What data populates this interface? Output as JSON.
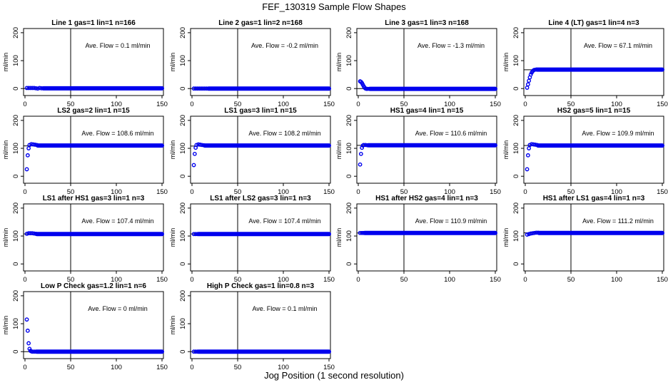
{
  "title": "FEF_130319  Sample Flow Shapes",
  "xlabel": "Jog Position (1 second resolution)",
  "colors": {
    "points": "#0000ee",
    "axes": "#000000",
    "background": "#ffffff"
  },
  "chart_data": [
    {
      "type": "scatter",
      "title": "Line 1 gas=1 lin=1 n=166",
      "ylabel": "ml/min",
      "annotation": "Ave. Flow =  0.1  ml/min",
      "xlim": [
        0,
        150
      ],
      "ylim": [
        -25,
        215
      ],
      "xticks": [
        0,
        50,
        100,
        150
      ],
      "yticks": [
        0,
        100,
        200
      ],
      "vline": 50,
      "hline": 0,
      "points": [
        [
          2,
          2
        ],
        [
          4,
          2
        ],
        [
          6,
          2
        ],
        [
          8,
          2
        ],
        [
          10,
          2
        ],
        [
          12,
          1
        ],
        [
          14,
          0
        ],
        [
          16,
          2
        ],
        [
          18,
          1
        ]
      ],
      "fill": {
        "from": 20,
        "to": 150,
        "y": 1
      }
    },
    {
      "type": "scatter",
      "title": "Line 2 gas=1 lin=2 n=168",
      "ylabel": "ml/min",
      "annotation": "Ave. Flow =  -0.2  ml/min",
      "xlim": [
        0,
        150
      ],
      "ylim": [
        -25,
        215
      ],
      "xticks": [
        0,
        50,
        100,
        150
      ],
      "yticks": [
        0,
        100,
        200
      ],
      "vline": 50,
      "hline": 0,
      "points": [
        [
          2,
          0
        ],
        [
          4,
          0
        ],
        [
          6,
          0
        ],
        [
          8,
          0
        ],
        [
          10,
          0
        ],
        [
          12,
          0
        ],
        [
          14,
          0
        ],
        [
          16,
          0
        ]
      ],
      "fill": {
        "from": 18,
        "to": 150,
        "y": 0
      }
    },
    {
      "type": "scatter",
      "title": "Line 3 gas=1 lin=3 n=168",
      "ylabel": "ml/min",
      "annotation": "Ave. Flow =  -1.3  ml/min",
      "xlim": [
        0,
        150
      ],
      "ylim": [
        -25,
        215
      ],
      "xticks": [
        0,
        50,
        100,
        150
      ],
      "yticks": [
        0,
        100,
        200
      ],
      "vline": 50,
      "hline": 0,
      "points": [
        [
          2,
          26
        ],
        [
          3,
          24
        ],
        [
          4,
          20
        ],
        [
          5,
          14
        ],
        [
          6,
          8
        ],
        [
          7,
          3
        ],
        [
          8,
          0
        ],
        [
          9,
          -1
        ],
        [
          10,
          -1
        ],
        [
          12,
          -1
        ]
      ],
      "fill": {
        "from": 13,
        "to": 150,
        "y": -1
      }
    },
    {
      "type": "scatter",
      "title": "Line 4 (LT) gas=1 lin=4 n=3",
      "ylabel": "ml/min",
      "annotation": "Ave. Flow =  67.1  ml/min",
      "xlim": [
        0,
        150
      ],
      "ylim": [
        -25,
        215
      ],
      "xticks": [
        0,
        50,
        100,
        150
      ],
      "yticks": [
        0,
        100,
        200
      ],
      "vline": 50,
      "hline": 67.1,
      "points": [
        [
          2,
          3
        ],
        [
          3,
          15
        ],
        [
          4,
          28
        ],
        [
          5,
          40
        ],
        [
          6,
          50
        ],
        [
          7,
          57
        ],
        [
          8,
          62
        ],
        [
          9,
          65
        ],
        [
          10,
          67
        ],
        [
          12,
          68
        ]
      ],
      "fill": {
        "from": 13,
        "to": 150,
        "y": 68
      }
    },
    {
      "type": "scatter",
      "title": "LS2 gas=2 lin=1 n=15",
      "ylabel": "ml/min",
      "annotation": "Ave. Flow =  108.6  ml/min",
      "xlim": [
        0,
        150
      ],
      "ylim": [
        -25,
        215
      ],
      "xticks": [
        0,
        50,
        100,
        150
      ],
      "yticks": [
        0,
        100,
        200
      ],
      "vline": 50,
      "hline": 108.6,
      "points": [
        [
          2,
          25
        ],
        [
          3,
          75
        ],
        [
          4,
          100
        ],
        [
          5,
          112
        ],
        [
          7,
          115
        ],
        [
          9,
          114
        ],
        [
          11,
          113
        ],
        [
          13,
          112
        ]
      ],
      "fill": {
        "from": 14,
        "to": 150,
        "y": 110
      }
    },
    {
      "type": "scatter",
      "title": "LS1 gas=3 lin=1 n=15",
      "ylabel": "ml/min",
      "annotation": "Ave. Flow =  108.2  ml/min",
      "xlim": [
        0,
        150
      ],
      "ylim": [
        -25,
        215
      ],
      "xticks": [
        0,
        50,
        100,
        150
      ],
      "yticks": [
        0,
        100,
        200
      ],
      "vline": 50,
      "hline": 108.2,
      "points": [
        [
          2,
          40
        ],
        [
          3,
          80
        ],
        [
          4,
          102
        ],
        [
          5,
          112
        ],
        [
          7,
          114
        ],
        [
          9,
          113
        ],
        [
          11,
          112
        ],
        [
          13,
          111
        ]
      ],
      "fill": {
        "from": 14,
        "to": 150,
        "y": 110
      }
    },
    {
      "type": "scatter",
      "title": "HS1 gas=4 lin=1 n=15",
      "ylabel": "ml/min",
      "annotation": "Ave. Flow =  110.6  ml/min",
      "xlim": [
        0,
        150
      ],
      "ylim": [
        -25,
        215
      ],
      "xticks": [
        0,
        50,
        100,
        150
      ],
      "yticks": [
        0,
        100,
        200
      ],
      "vline": 50,
      "hline": 110.6,
      "points": [
        [
          2,
          42
        ],
        [
          3,
          80
        ],
        [
          4,
          102
        ],
        [
          5,
          110
        ],
        [
          6,
          112
        ],
        [
          8,
          112
        ],
        [
          10,
          111
        ]
      ],
      "fill": {
        "from": 11,
        "to": 150,
        "y": 111
      }
    },
    {
      "type": "scatter",
      "title": "HS2 gas=5 lin=1 n=15",
      "ylabel": "ml/min",
      "annotation": "Ave. Flow =  109.9  ml/min",
      "xlim": [
        0,
        150
      ],
      "ylim": [
        -25,
        215
      ],
      "xticks": [
        0,
        50,
        100,
        150
      ],
      "yticks": [
        0,
        100,
        200
      ],
      "vline": 50,
      "hline": 109.9,
      "points": [
        [
          2,
          25
        ],
        [
          3,
          75
        ],
        [
          4,
          100
        ],
        [
          5,
          112
        ],
        [
          7,
          115
        ],
        [
          9,
          114
        ],
        [
          11,
          113
        ],
        [
          13,
          112
        ]
      ],
      "fill": {
        "from": 14,
        "to": 150,
        "y": 110
      }
    },
    {
      "type": "scatter",
      "title": "LS1 after HS1 gas=3 lin=1 n=3",
      "ylabel": "ml/min",
      "annotation": "Ave. Flow =  107.4  ml/min",
      "xlim": [
        0,
        150
      ],
      "ylim": [
        -25,
        215
      ],
      "xticks": [
        0,
        50,
        100,
        150
      ],
      "yticks": [
        0,
        100,
        200
      ],
      "vline": 50,
      "hline": 107.4,
      "points": [
        [
          2,
          108
        ],
        [
          4,
          110
        ],
        [
          6,
          110
        ],
        [
          8,
          110
        ],
        [
          10,
          109
        ],
        [
          12,
          108
        ]
      ],
      "fill": {
        "from": 13,
        "to": 150,
        "y": 107
      }
    },
    {
      "type": "scatter",
      "title": "LS1 after LS2 gas=3 lin=1 n=3",
      "ylabel": "ml/min",
      "annotation": "Ave. Flow =  107.4  ml/min",
      "xlim": [
        0,
        150
      ],
      "ylim": [
        -25,
        215
      ],
      "xticks": [
        0,
        50,
        100,
        150
      ],
      "yticks": [
        0,
        100,
        200
      ],
      "vline": 50,
      "hline": 107.4,
      "points": [
        [
          2,
          107
        ],
        [
          4,
          107
        ],
        [
          6,
          107
        ]
      ],
      "fill": {
        "from": 7,
        "to": 150,
        "y": 107
      }
    },
    {
      "type": "scatter",
      "title": "HS1 after HS2 gas=4 lin=1 n=3",
      "ylabel": "ml/min",
      "annotation": "Ave. Flow =  110.9  ml/min",
      "xlim": [
        0,
        150
      ],
      "ylim": [
        -25,
        215
      ],
      "xticks": [
        0,
        50,
        100,
        150
      ],
      "yticks": [
        0,
        100,
        200
      ],
      "vline": 50,
      "hline": 110.9,
      "points": [
        [
          2,
          111
        ],
        [
          4,
          111
        ],
        [
          6,
          111
        ]
      ],
      "fill": {
        "from": 7,
        "to": 150,
        "y": 111
      }
    },
    {
      "type": "scatter",
      "title": "HS1 after LS1 gas=4 lin=1 n=3",
      "ylabel": "ml/min",
      "annotation": "Ave. Flow =  111.2  ml/min",
      "xlim": [
        0,
        150
      ],
      "ylim": [
        -25,
        215
      ],
      "xticks": [
        0,
        50,
        100,
        150
      ],
      "yticks": [
        0,
        100,
        200
      ],
      "vline": 50,
      "hline": 111.2,
      "points": [
        [
          2,
          105
        ],
        [
          4,
          107
        ],
        [
          6,
          109
        ],
        [
          8,
          110
        ],
        [
          10,
          111
        ],
        [
          12,
          112
        ],
        [
          14,
          112
        ]
      ],
      "fill": {
        "from": 15,
        "to": 150,
        "y": 111
      }
    },
    {
      "type": "scatter",
      "title": "Low P Check gas=1.2 lin=1 n=6",
      "ylabel": "ml/min",
      "annotation": "Ave. Flow =  0  ml/min",
      "xlim": [
        0,
        150
      ],
      "ylim": [
        -25,
        215
      ],
      "xticks": [
        0,
        50,
        100,
        150
      ],
      "yticks": [
        0,
        100,
        200
      ],
      "vline": 50,
      "hline": 0,
      "points": [
        [
          2,
          115
        ],
        [
          3,
          75
        ],
        [
          4,
          30
        ],
        [
          5,
          10
        ],
        [
          6,
          3
        ],
        [
          7,
          1
        ],
        [
          8,
          0
        ],
        [
          10,
          0
        ],
        [
          12,
          0
        ]
      ],
      "fill": {
        "from": 13,
        "to": 150,
        "y": 0
      }
    },
    {
      "type": "scatter",
      "title": "High P Check gas=1 lin=0.8 n=3",
      "ylabel": "ml/min",
      "annotation": "Ave. Flow =  0.1  ml/min",
      "xlim": [
        0,
        150
      ],
      "ylim": [
        -25,
        215
      ],
      "xticks": [
        0,
        50,
        100,
        150
      ],
      "yticks": [
        0,
        100,
        200
      ],
      "vline": 50,
      "hline": 0,
      "points": [
        [
          2,
          0
        ],
        [
          4,
          0
        ],
        [
          6,
          0
        ]
      ],
      "fill": {
        "from": 7,
        "to": 150,
        "y": 0
      }
    }
  ]
}
